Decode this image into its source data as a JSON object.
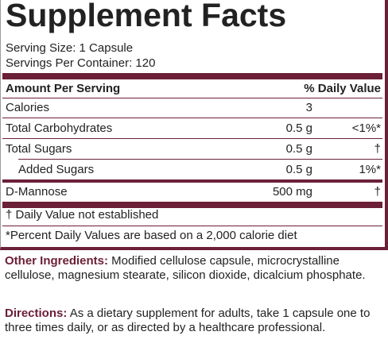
{
  "facts": {
    "title": "Supplement Facts",
    "serving_size": "Serving Size: 1 Capsule",
    "servings_per_container": "Servings Per Container: 120",
    "header": {
      "left": "Amount Per Serving",
      "right": "% Daily Value"
    },
    "rows": [
      {
        "name": "Calories",
        "amount": "3",
        "dv": ""
      },
      {
        "name": "Total Carbohydrates",
        "amount": "0.5 g",
        "dv": "<1%*"
      },
      {
        "name": "Total Sugars",
        "amount": "0.5 g",
        "dv": "†"
      },
      {
        "name": "Added Sugars",
        "amount": "0.5 g",
        "dv": "1%*"
      },
      {
        "name": "D-Mannose",
        "amount": "500 mg",
        "dv": "†"
      }
    ],
    "footnote_dagger": "† Daily Value not established",
    "footnote_percent": "*Percent Daily Values are based on a 2,000 calorie diet"
  },
  "other_ingredients": {
    "label": "Other Ingredients:",
    "text": " Modified cellulose capsule, microcrystalline cellulose, magnesium stearate, silicon dioxide, dicalcium phosphate."
  },
  "directions": {
    "label": "Directions:",
    "text": " As a dietary supplement for adults, take 1 capsule one to three times daily, or as directed by a healthcare professional."
  },
  "colors": {
    "accent": "#6b2037",
    "text": "#222222"
  }
}
